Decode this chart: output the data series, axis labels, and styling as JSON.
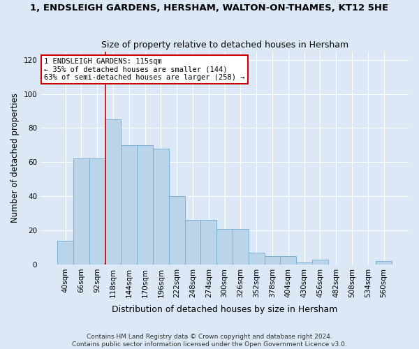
{
  "title": "1, ENDSLEIGH GARDENS, HERSHAM, WALTON-ON-THAMES, KT12 5HE",
  "subtitle": "Size of property relative to detached houses in Hersham",
  "xlabel": "Distribution of detached houses by size in Hersham",
  "ylabel": "Number of detached properties",
  "categories": [
    "40sqm",
    "66sqm",
    "92sqm",
    "118sqm",
    "144sqm",
    "170sqm",
    "196sqm",
    "222sqm",
    "248sqm",
    "274sqm",
    "300sqm",
    "326sqm",
    "352sqm",
    "378sqm",
    "404sqm",
    "430sqm",
    "456sqm",
    "482sqm",
    "508sqm",
    "534sqm",
    "560sqm"
  ],
  "values": [
    14,
    62,
    62,
    85,
    70,
    70,
    68,
    40,
    26,
    26,
    21,
    21,
    7,
    5,
    5,
    1,
    3,
    0,
    0,
    0,
    2
  ],
  "bar_color": "#bad4ea",
  "bar_edgecolor": "#7bafd4",
  "vline_x": 3.0,
  "vline_color": "#cc0000",
  "annotation_text": "1 ENDSLEIGH GARDENS: 115sqm\n← 35% of detached houses are smaller (144)\n63% of semi-detached houses are larger (258) →",
  "annotation_box_color": "#ffffff",
  "annotation_box_edgecolor": "#cc0000",
  "ylim": [
    0,
    125
  ],
  "yticks": [
    0,
    20,
    40,
    60,
    80,
    100,
    120
  ],
  "background_color": "#dce8f5",
  "plot_background": "#dce8f5",
  "footer_line1": "Contains HM Land Registry data © Crown copyright and database right 2024.",
  "footer_line2": "Contains public sector information licensed under the Open Government Licence v3.0.",
  "title_fontsize": 9.5,
  "subtitle_fontsize": 9,
  "xlabel_fontsize": 9,
  "ylabel_fontsize": 8.5,
  "tick_fontsize": 7.5,
  "annotation_fontsize": 7.5
}
